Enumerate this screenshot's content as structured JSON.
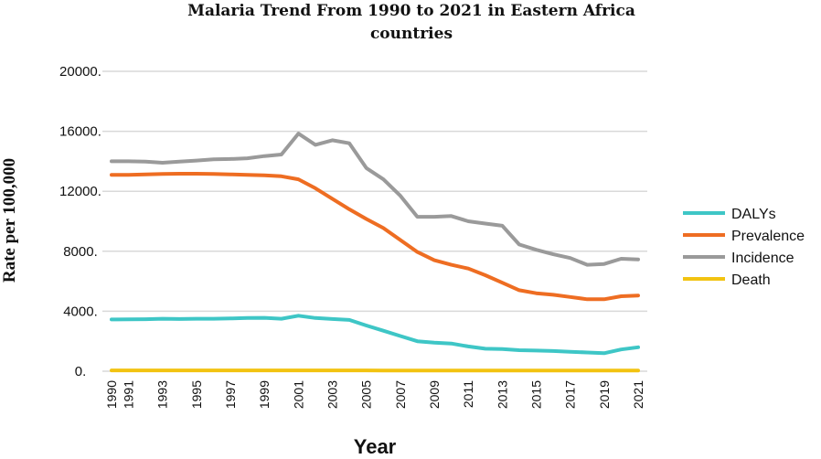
{
  "chart_data": {
    "type": "line",
    "title": "Malaria Trend From 1990 to 2021 in Eastern Africa countries",
    "title_lines": [
      "Malaria Trend From 1990 to 2021 in Eastern Africa",
      "countries"
    ],
    "xlabel": "Year",
    "ylabel": "Rate per 100,000",
    "ylim": [
      0,
      20000
    ],
    "yticks": [
      0,
      4000,
      8000,
      12000,
      16000,
      20000
    ],
    "ytick_labels": [
      "0.",
      "4000.",
      "8000.",
      "12000.",
      "16000.",
      "20000."
    ],
    "x": [
      1990,
      1991,
      1992,
      1993,
      1994,
      1995,
      1996,
      1997,
      1998,
      1999,
      2000,
      2001,
      2002,
      2003,
      2004,
      2005,
      2006,
      2007,
      2008,
      2009,
      2010,
      2011,
      2012,
      2013,
      2014,
      2015,
      2016,
      2017,
      2018,
      2019,
      2020,
      2021
    ],
    "xtick_labels": [
      "1990",
      "1991",
      "1993",
      "1995",
      "1997",
      "1999",
      "2001",
      "2003",
      "2005",
      "2007",
      "2009",
      "2011",
      "2013",
      "2015",
      "2017",
      "2019",
      "2021"
    ],
    "grid": true,
    "legend_position": "right",
    "series": [
      {
        "name": "DALYs",
        "color": "#3ec6c6",
        "values": [
          3450,
          3460,
          3470,
          3500,
          3480,
          3500,
          3500,
          3520,
          3550,
          3560,
          3500,
          3700,
          3550,
          3480,
          3420,
          3050,
          2700,
          2350,
          2000,
          1900,
          1850,
          1650,
          1500,
          1480,
          1400,
          1380,
          1350,
          1300,
          1250,
          1200,
          1450,
          1600
        ]
      },
      {
        "name": "Prevalence",
        "color": "#ee6d22",
        "values": [
          13100,
          13100,
          13120,
          13150,
          13170,
          13170,
          13160,
          13130,
          13100,
          13060,
          13000,
          12800,
          12200,
          11500,
          10800,
          10150,
          9550,
          8750,
          7950,
          7400,
          7100,
          6850,
          6400,
          5900,
          5400,
          5200,
          5100,
          4950,
          4800,
          4800,
          5000,
          5050
        ]
      },
      {
        "name": "Incidence",
        "color": "#9a9a9a",
        "values": [
          14000,
          14000,
          13980,
          13900,
          13980,
          14050,
          14130,
          14150,
          14200,
          14350,
          14450,
          15850,
          15100,
          15400,
          15200,
          13550,
          12800,
          11700,
          10300,
          10300,
          10350,
          10000,
          9850,
          9700,
          8450,
          8100,
          7800,
          7550,
          7100,
          7150,
          7500,
          7450
        ]
      },
      {
        "name": "Death",
        "color": "#f2c311",
        "values": [
          55,
          55,
          55,
          55,
          55,
          55,
          55,
          55,
          55,
          55,
          55,
          55,
          55,
          55,
          55,
          55,
          50,
          50,
          50,
          50,
          45,
          45,
          45,
          45,
          40,
          40,
          40,
          40,
          40,
          40,
          40,
          40
        ]
      }
    ]
  }
}
